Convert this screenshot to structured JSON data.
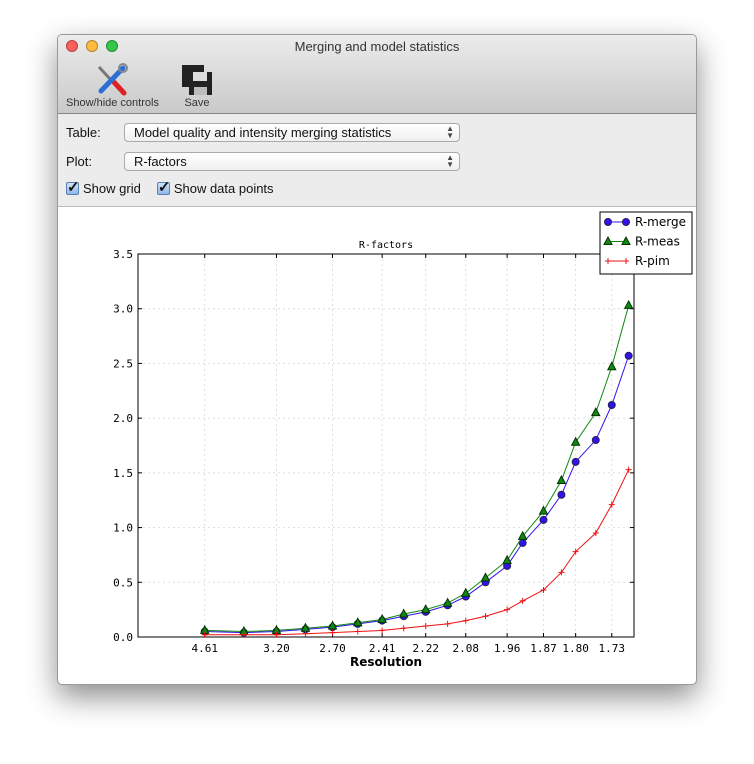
{
  "window": {
    "title": "Merging and model statistics"
  },
  "toolbar": {
    "show_hide_label": "Show/hide controls",
    "save_label": "Save"
  },
  "controls": {
    "table_label": "Table:",
    "table_value": "Model quality and intensity merging statistics",
    "plot_label": "Plot:",
    "plot_value": "R-factors",
    "show_grid_label": "Show grid",
    "show_grid": true,
    "show_points_label": "Show data points",
    "show_points": true
  },
  "chart_data": {
    "type": "line",
    "title": "R-factors",
    "xlabel": "Resolution",
    "ylabel": "",
    "x_scale": "1/d^2 (reciprocal squared resolution)",
    "ylim": [
      0,
      3.5
    ],
    "yticks": [
      "0.0",
      "0.5",
      "1.0",
      "1.5",
      "2.0",
      "2.5",
      "3.0",
      "3.5"
    ],
    "xticks": [
      "4.61",
      "3.20",
      "2.70",
      "2.41",
      "2.22",
      "2.08",
      "1.96",
      "1.87",
      "1.80",
      "1.73"
    ],
    "grid": true,
    "legend": "top-right",
    "x": [
      4.61,
      3.66,
      3.2,
      2.91,
      2.7,
      2.54,
      2.41,
      2.31,
      2.22,
      2.14,
      2.08,
      2.02,
      1.96,
      1.92,
      1.87,
      1.83,
      1.8,
      1.76,
      1.73,
      1.7
    ],
    "series": [
      {
        "name": "R-merge",
        "color": "#3311ee",
        "marker": "circle",
        "values": [
          0.05,
          0.04,
          0.05,
          0.07,
          0.09,
          0.12,
          0.15,
          0.19,
          0.23,
          0.29,
          0.37,
          0.5,
          0.65,
          0.86,
          1.07,
          1.3,
          1.6,
          1.8,
          2.12,
          2.57
        ]
      },
      {
        "name": "R-meas",
        "color": "#118811",
        "marker": "triangle",
        "values": [
          0.06,
          0.05,
          0.06,
          0.08,
          0.1,
          0.13,
          0.16,
          0.21,
          0.25,
          0.31,
          0.4,
          0.54,
          0.7,
          0.92,
          1.15,
          1.43,
          1.78,
          2.05,
          2.47,
          3.03
        ]
      },
      {
        "name": "R-pim",
        "color": "#ee1111",
        "marker": "plus",
        "values": [
          0.02,
          0.02,
          0.02,
          0.03,
          0.04,
          0.05,
          0.06,
          0.08,
          0.1,
          0.12,
          0.15,
          0.19,
          0.25,
          0.33,
          0.43,
          0.59,
          0.78,
          0.95,
          1.21,
          1.53
        ]
      }
    ]
  }
}
